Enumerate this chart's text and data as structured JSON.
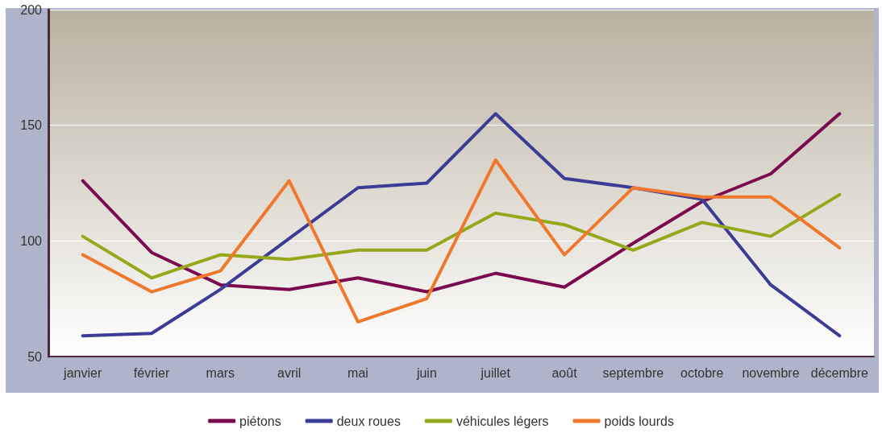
{
  "chart_data": {
    "type": "line",
    "categories": [
      "janvier",
      "février",
      "mars",
      "avril",
      "mai",
      "juin",
      "juillet",
      "août",
      "septembre",
      "octobre",
      "novembre",
      "décembre"
    ],
    "series": [
      {
        "name": "piétons",
        "color": "#7b0a4e",
        "values": [
          126,
          95,
          81,
          79,
          84,
          78,
          86,
          80,
          99,
          117,
          129,
          155
        ]
      },
      {
        "name": "deux roues",
        "color": "#3c3c96",
        "values": [
          59,
          60,
          79,
          101,
          123,
          125,
          155,
          127,
          123,
          118,
          81,
          59
        ]
      },
      {
        "name": "véhicules légers",
        "color": "#95a81c",
        "values": [
          102,
          84,
          94,
          92,
          96,
          96,
          112,
          107,
          96,
          108,
          102,
          120
        ]
      },
      {
        "name": "poids lourds",
        "color": "#f0782d",
        "values": [
          94,
          78,
          87,
          126,
          65,
          75,
          135,
          94,
          123,
          119,
          119,
          97
        ]
      }
    ],
    "ylim": [
      50,
      200
    ],
    "yticks": [
      50,
      100,
      150,
      200
    ],
    "grid": "y",
    "legend": "bottom",
    "marker": "none",
    "line_style": "solid"
  }
}
